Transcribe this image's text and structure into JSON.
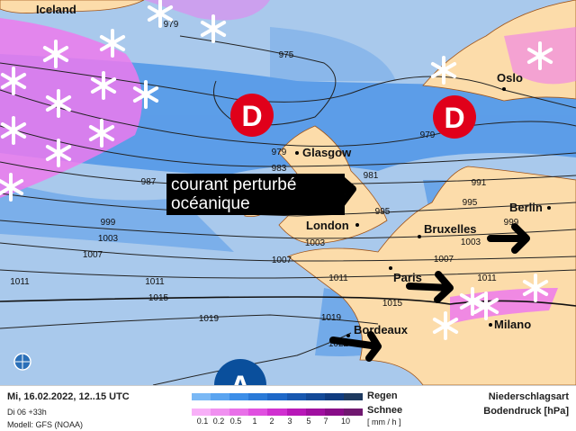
{
  "cities": [
    "Iceland",
    "Oslo",
    "Glasgow",
    "London",
    "Bruxelles",
    "Berlin",
    "Paris",
    "Milano",
    "Bordeaux"
  ],
  "isobars": [
    "979",
    "975",
    "979",
    "983",
    "987",
    "981",
    "991",
    "995",
    "999",
    "1003",
    "1007",
    "1011",
    "1015",
    "1019",
    "1019",
    "1022",
    "999",
    "1003",
    "1007",
    "1011",
    "1015",
    "1011",
    "1007",
    "979"
  ],
  "lows": [
    "D",
    "D"
  ],
  "high": "A",
  "callout": {
    "line1": "courant perturbé",
    "line2": "océanique"
  },
  "footer": {
    "datetime": "Mi, 16.02.2022, 12..15 UTC",
    "run": "Di 06 +33h",
    "model": "Modell: GFS (NOAA)",
    "rain": "Regen",
    "snow": "Schnee",
    "unit": "[ mm / h ]",
    "title1": "Niederschlagsart",
    "title2": "Bodendruck [hPa]",
    "ticks": [
      "0.1",
      "0.2",
      "0.5",
      "1",
      "2",
      "3",
      "5",
      "7",
      "10"
    ],
    "rain_colors": [
      "#7ab8f5",
      "#5aa4f0",
      "#3c8ee8",
      "#2a7ad8",
      "#1e68c8",
      "#1858b0",
      "#144a98",
      "#103c80",
      "#1e3a60"
    ],
    "snow_colors": [
      "#f8b0f8",
      "#f090f0",
      "#e870e8",
      "#e050e0",
      "#d030d0",
      "#b818b8",
      "#a010a0",
      "#880c88",
      "#701870"
    ]
  },
  "colors": {
    "ocean": "#a9c9ec",
    "rain": "#4f96e8",
    "land": "#fcdcaa",
    "snowfall": "#ee7aee",
    "low": "#e0001a",
    "high": "#0a4f9c"
  }
}
